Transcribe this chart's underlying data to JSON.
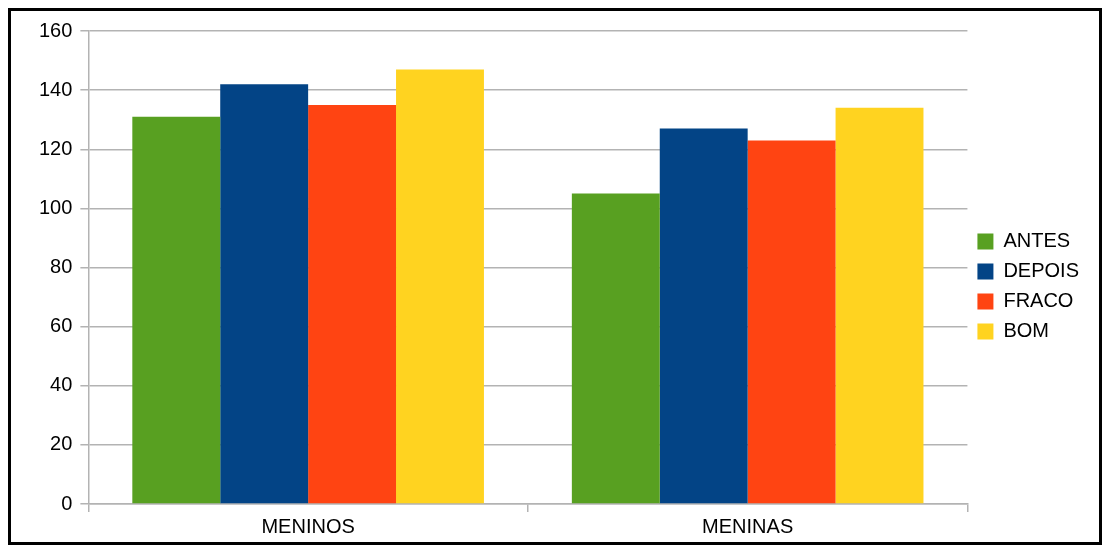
{
  "chart_data": {
    "type": "bar",
    "categories": [
      "MENINOS",
      "MENINAS"
    ],
    "series": [
      {
        "name": "ANTES",
        "color": "#58a021",
        "values": [
          131,
          105
        ]
      },
      {
        "name": "DEPOIS",
        "color": "#034486",
        "values": [
          142,
          127
        ]
      },
      {
        "name": "FRACO",
        "color": "#ff4412",
        "values": [
          135,
          123
        ]
      },
      {
        "name": "BOM",
        "color": "#ffd320",
        "values": [
          147,
          134
        ]
      }
    ],
    "ylim": [
      0,
      160
    ],
    "yticks": [
      0,
      20,
      40,
      60,
      80,
      100,
      120,
      140,
      160
    ],
    "grid": "y",
    "legend": "right"
  }
}
